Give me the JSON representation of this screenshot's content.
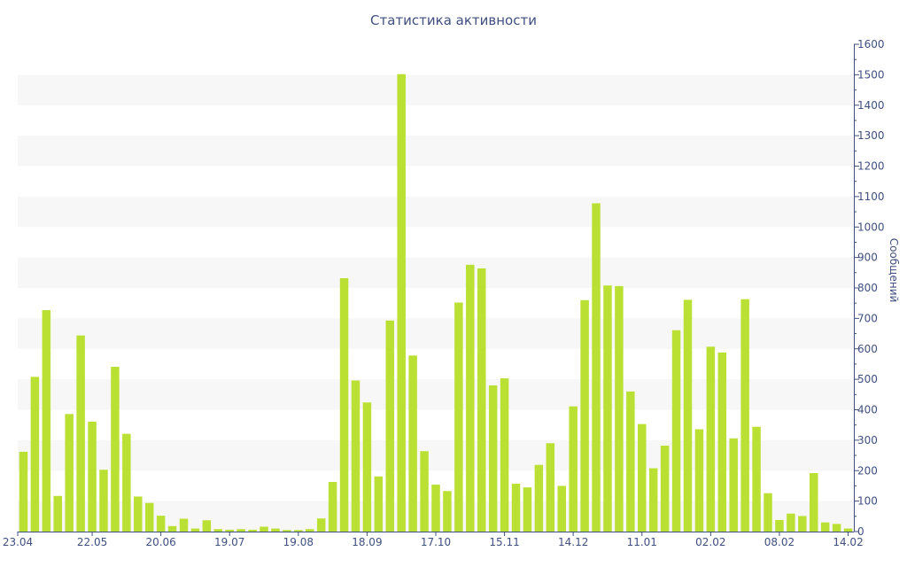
{
  "chart_data": {
    "type": "bar",
    "title": "Статистика активности",
    "ylabel": "Сообщений",
    "xlabel": "",
    "ylim": [
      0,
      1600
    ],
    "y_ticks": [
      0,
      100,
      200,
      300,
      400,
      500,
      600,
      700,
      800,
      900,
      1000,
      1100,
      1200,
      1300,
      1400,
      1500,
      1600
    ],
    "y_axis_position": "right",
    "grid": "alternating horizontal bands",
    "legend": "none",
    "x_tick_labels": [
      {
        "label": "23.04",
        "index": 0
      },
      {
        "label": "22.05",
        "index": 6
      },
      {
        "label": "20.06",
        "index": 12
      },
      {
        "label": "19.07",
        "index": 18
      },
      {
        "label": "19.08",
        "index": 24
      },
      {
        "label": "18.09",
        "index": 30
      },
      {
        "label": "17.10",
        "index": 36
      },
      {
        "label": "15.11",
        "index": 42
      },
      {
        "label": "14.12",
        "index": 48
      },
      {
        "label": "11.01",
        "index": 54
      },
      {
        "label": "02.02",
        "index": 60
      },
      {
        "label": "08.02",
        "index": 66
      },
      {
        "label": "14.02",
        "index": 72
      }
    ],
    "values": [
      262,
      508,
      727,
      117,
      386,
      644,
      361,
      203,
      541,
      321,
      115,
      94,
      52,
      18,
      42,
      10,
      37,
      8,
      6,
      8,
      6,
      16,
      10,
      5,
      5,
      8,
      43,
      163,
      832,
      496,
      424,
      181,
      693,
      1502,
      578,
      264,
      154,
      133,
      752,
      876,
      864,
      480,
      503,
      157,
      145,
      219,
      290,
      150,
      411,
      760,
      1078,
      808,
      806,
      460,
      353,
      208,
      282,
      661,
      761,
      336,
      607,
      588,
      306,
      763,
      344,
      126,
      38,
      59,
      51,
      192,
      30,
      25,
      10
    ],
    "colors": {
      "bar": "#bbe034",
      "band": "#f7f7f7",
      "axis": "#3f4f80",
      "text": "#3f4f80"
    }
  }
}
